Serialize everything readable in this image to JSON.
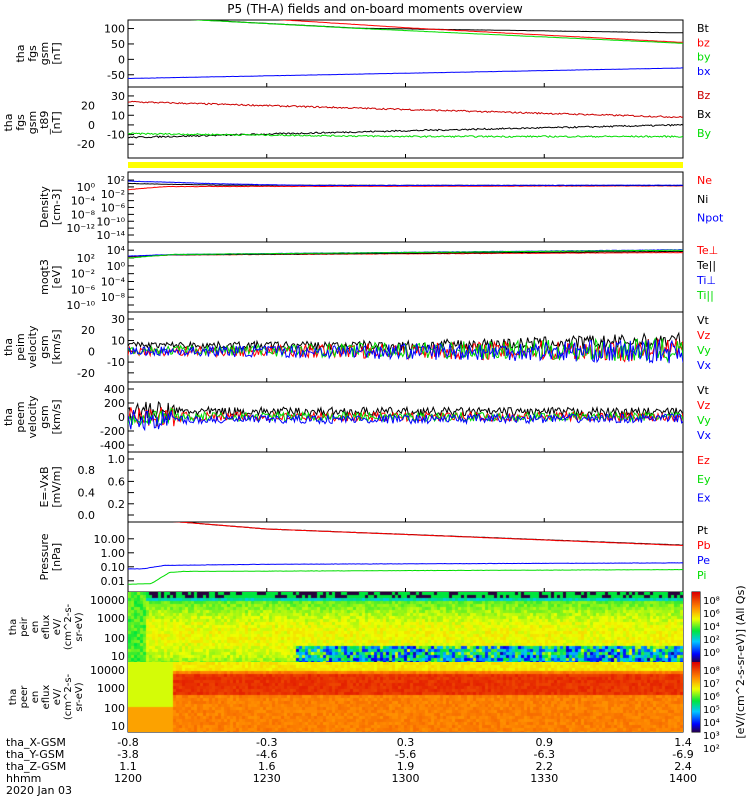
{
  "title": "P5 (TH-A) fields and on-board moments overview",
  "chart_data": {
    "type": "line",
    "title": "P5 (TH-A) fields and on-board moments overview",
    "xlabel": "hhmm",
    "date": "2020 Jan 03",
    "x_ticks": [
      "1200",
      "1230",
      "1300",
      "1330",
      "1400"
    ],
    "xlim": [
      0,
      120
    ],
    "panels": [
      {
        "ylabel": [
          "tha",
          "fgs",
          "gsm",
          "[nT]"
        ],
        "scale": "linear",
        "ylim": [
          -67,
          105
        ],
        "ticks": [
          "100",
          "50",
          "0",
          "-50"
        ],
        "tick_values": [
          100,
          50,
          0,
          -50
        ],
        "series": [
          {
            "name": "Bt",
            "color": "#000000",
            "points": [
              [
                0,
                140
              ],
              [
                50,
                101
              ],
              [
                120,
                86
              ]
            ]
          },
          {
            "name": "bz",
            "color": "#ff0000",
            "points": [
              [
                0,
                160
              ],
              [
                62,
                101
              ],
              [
                120,
                55
              ]
            ]
          },
          {
            "name": "by",
            "color": "#00dd00",
            "points": [
              [
                0,
                140
              ],
              [
                49,
                101
              ],
              [
                120,
                52
              ]
            ]
          },
          {
            "name": "bx",
            "color": "#0000ff",
            "points": [
              [
                0,
                -62
              ],
              [
                60,
                -45
              ],
              [
                120,
                -28
              ]
            ]
          }
        ]
      },
      {
        "ylabel": [
          "tha",
          "fgs",
          "gsm",
          "_t89",
          "[nT]"
        ],
        "scale": "linear",
        "ylim": [
          -27,
          32
        ],
        "ticks": [
          "30",
          "20",
          "10",
          "0",
          "-10",
          "-20"
        ],
        "tick_values": [
          30,
          20,
          10,
          0,
          -10,
          -20
        ],
        "series": [
          {
            "name": "Bz",
            "color": "#cc0000",
            "points": [
              [
                0,
                24
              ],
              [
                60,
                16
              ],
              [
                120,
                8
              ]
            ]
          },
          {
            "name": "Bx",
            "color": "#000000",
            "points": [
              [
                0,
                -13
              ],
              [
                60,
                -6
              ],
              [
                120,
                0
              ]
            ]
          },
          {
            "name": "By",
            "color": "#00dd00",
            "points": [
              [
                0,
                -9
              ],
              [
                60,
                -12
              ],
              [
                120,
                -12
              ]
            ]
          }
        ]
      },
      {
        "ylabel": [
          "Density",
          "[cm-3]"
        ],
        "scale": "log",
        "ylim": [
          -14,
          2.3
        ],
        "ticks": [
          "10²",
          "10⁰",
          "10⁻²",
          "10⁻⁴",
          "10⁻⁶",
          "10⁻⁸",
          "10⁻¹⁰",
          "10⁻¹²",
          "10⁻¹⁴"
        ],
        "tick_values": [
          2,
          0,
          -2,
          -4,
          -6,
          -8,
          -10,
          -12,
          -14
        ],
        "series": [
          {
            "name": "Ne",
            "color": "#ff0000",
            "points": [
              [
                0,
                -0.8
              ],
              [
                8,
                0.1
              ],
              [
                120,
                0.3
              ]
            ]
          },
          {
            "name": "Ni",
            "color": "#000000",
            "points": [
              [
                0,
                1
              ],
              [
                20,
                0.5
              ],
              [
                120,
                0.4
              ]
            ]
          },
          {
            "name": "Npot",
            "color": "#0000ff",
            "points": [
              [
                0,
                1.7
              ],
              [
                20,
                0.9
              ],
              [
                40,
                0.4
              ],
              [
                120,
                0.5
              ]
            ]
          }
        ]
      },
      {
        "ylabel": [
          "moqt3",
          "[eV]"
        ],
        "scale": "log",
        "ylim": [
          -10,
          4.3
        ],
        "ticks": [
          "10⁴",
          "10²",
          "10⁰",
          "10⁻²",
          "10⁻⁴",
          "10⁻⁶",
          "10⁻⁸",
          "10⁻¹⁰"
        ],
        "tick_values": [
          4,
          2,
          0,
          -2,
          -4,
          -6,
          -8,
          -10
        ],
        "series": [
          {
            "name": "Te⊥",
            "color": "#ff0000",
            "points": [
              [
                0,
                2.3
              ],
              [
                10,
                2.8
              ],
              [
                120,
                3.4
              ]
            ]
          },
          {
            "name": "Te||",
            "color": "#000000",
            "points": [
              [
                0,
                2.4
              ],
              [
                10,
                2.8
              ],
              [
                120,
                3.7
              ]
            ]
          },
          {
            "name": "Ti⊥",
            "color": "#0000ff",
            "points": [
              [
                0,
                2.5
              ],
              [
                10,
                2.9
              ],
              [
                120,
                4.1
              ]
            ]
          },
          {
            "name": "Ti||",
            "color": "#00dd00",
            "points": [
              [
                0,
                2
              ],
              [
                10,
                2.9
              ],
              [
                120,
                4
              ]
            ]
          }
        ]
      },
      {
        "ylabel": [
          "tha",
          "peim",
          "velocity",
          "gsm",
          "[km/s]"
        ],
        "scale": "linear",
        "ylim": [
          -22,
          30
        ],
        "ticks": [
          "30",
          "20",
          "10",
          "0",
          "-10",
          "-20"
        ],
        "tick_values": [
          30,
          20,
          10,
          0,
          -10,
          -20
        ],
        "series": [
          {
            "name": "Vt",
            "color": "#000000",
            "points": [
              [
                0,
                6
              ],
              [
                60,
                5
              ],
              [
                120,
                10
              ]
            ]
          },
          {
            "name": "Vz",
            "color": "#ff0000",
            "points": [
              [
                0,
                0
              ],
              [
                120,
                1
              ]
            ]
          },
          {
            "name": "Vy",
            "color": "#00dd00",
            "points": [
              [
                0,
                1
              ],
              [
                120,
                1
              ]
            ]
          },
          {
            "name": "Vx",
            "color": "#0000ff",
            "points": [
              [
                0,
                0
              ],
              [
                120,
                0
              ]
            ]
          }
        ]
      },
      {
        "ylabel": [
          "tha",
          "peem",
          "velocity",
          "gsm",
          "[km/s]"
        ],
        "scale": "linear",
        "ylim": [
          -400,
          400
        ],
        "ticks": [
          "400",
          "200",
          "0",
          "-200",
          "-400"
        ],
        "tick_values": [
          400,
          200,
          0,
          -200,
          -400
        ],
        "series": [
          {
            "name": "Vt",
            "color": "#000000",
            "points": [
              [
                0,
                80
              ],
              [
                120,
                70
              ]
            ]
          },
          {
            "name": "Vz",
            "color": "#ff0000",
            "points": [
              [
                0,
                5
              ],
              [
                120,
                5
              ]
            ]
          },
          {
            "name": "Vy",
            "color": "#00dd00",
            "points": [
              [
                0,
                5
              ],
              [
                120,
                5
              ]
            ]
          },
          {
            "name": "Vx",
            "color": "#0000ff",
            "points": [
              [
                0,
                -40
              ],
              [
                120,
                -20
              ]
            ]
          }
        ]
      },
      {
        "ylabel": [
          "E=-VxB",
          "[mV/m]"
        ],
        "scale": "linear",
        "ylim": [
          0,
          1
        ],
        "ticks": [
          "1.0",
          "0.8",
          "0.6",
          "0.4",
          "0.2",
          "0.0"
        ],
        "tick_values": [
          1,
          0.8,
          0.6,
          0.4,
          0.2,
          0
        ],
        "series": [
          {
            "name": "Ez",
            "color": "#ff0000",
            "points": []
          },
          {
            "name": "Ey",
            "color": "#00dd00",
            "points": []
          },
          {
            "name": "Ex",
            "color": "#0000ff",
            "points": []
          }
        ]
      },
      {
        "ylabel": [
          "Pressure",
          "[nPa]"
        ],
        "scale": "log",
        "ylim": [
          -2.3,
          1.7
        ],
        "ticks": [
          "10.00",
          "1.00",
          "0.10",
          "0.01"
        ],
        "tick_values": [
          1,
          0,
          -1,
          -2
        ],
        "series": [
          {
            "name": "Pt",
            "color": "#000000",
            "points": [
              [
                0,
                2.5
              ],
              [
                30,
                1.7
              ],
              [
                120,
                0.55
              ]
            ]
          },
          {
            "name": "Pb",
            "color": "#ff0000",
            "points": [
              [
                0,
                2.5
              ],
              [
                30,
                1.7
              ],
              [
                120,
                0.52
              ]
            ]
          },
          {
            "name": "Pe",
            "color": "#0000ff",
            "points": [
              [
                0,
                -1.15
              ],
              [
                3,
                -1.15
              ],
              [
                8,
                -0.9
              ],
              [
                30,
                -0.82
              ],
              [
                120,
                -0.72
              ]
            ]
          },
          {
            "name": "Pi",
            "color": "#00dd00",
            "points": [
              [
                0,
                -2.25
              ],
              [
                5,
                -2.2
              ],
              [
                9,
                -1.4
              ],
              [
                12,
                -1.33
              ],
              [
                120,
                -1.2
              ]
            ]
          }
        ]
      }
    ],
    "spectrograms": [
      {
        "ylabel": [
          "tha",
          "peir",
          "en",
          "eflux",
          "eV/",
          "(cm^2-s-",
          "sr-eV)"
        ],
        "ticks": [
          "10000",
          "1000",
          "100",
          "10"
        ],
        "zlim_log": [
          0,
          8
        ],
        "colorbar_ticks": [
          "10⁸",
          "10⁶",
          "10⁴",
          "10²",
          "10⁰"
        ]
      },
      {
        "ylabel": [
          "tha",
          "peer",
          "en",
          "eflux",
          "eV/",
          "(cm^2-s-",
          "sr-eV)"
        ],
        "ticks": [
          "10000",
          "1000",
          "100",
          "10"
        ],
        "zlim_log": [
          2,
          8
        ],
        "colorbar_ticks": [
          "10⁸",
          "10⁷",
          "10⁶",
          "10⁵",
          "10⁴",
          "10³",
          "10²"
        ]
      }
    ],
    "colorbar_title": "[eV/(cm^2-s-sr-eV)] (All Qs)"
  },
  "footer": {
    "labels": [
      "tha_X-GSM",
      "tha_Y-GSM",
      "tha_Z-GSM",
      "hhmm",
      "2020 Jan 03"
    ],
    "columns": [
      [
        "-0.8",
        "-3.8",
        "1.1",
        "1200"
      ],
      [
        "-0.3",
        "-4.6",
        "1.6",
        "1230"
      ],
      [
        "0.3",
        "-5.6",
        "1.9",
        "1300"
      ],
      [
        "0.9",
        "-6.3",
        "2.2",
        "1330"
      ],
      [
        "1.4",
        "-6.9",
        "2.4",
        "1400"
      ]
    ]
  },
  "colors": {
    "bx": "#0000ff",
    "by": "#00dd00",
    "bz": "#ff0000",
    "bt": "#000000",
    "flag": "#ffff00"
  }
}
